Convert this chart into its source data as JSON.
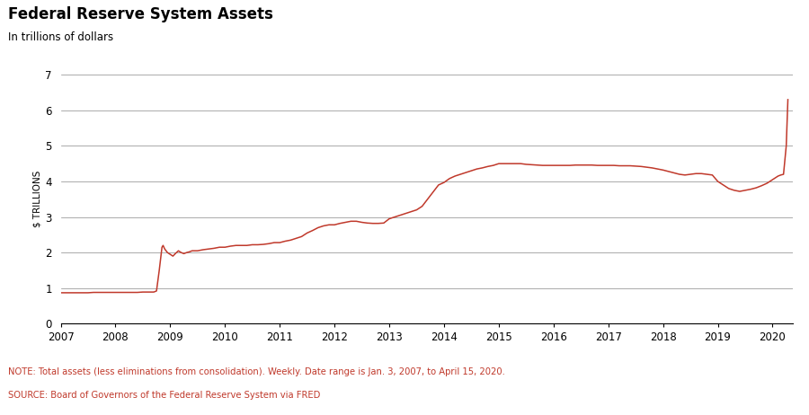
{
  "title": "Federal Reserve System Assets",
  "subtitle": "In trillions of dollars",
  "ylabel": "$ TRILLIONS",
  "note": "NOTE: Total assets (less eliminations from consolidation). Weekly. Date range is Jan. 3, 2007, to April 15, 2020.",
  "source": "SOURCE: Board of Governors of the Federal Reserve System via FRED",
  "line_color": "#c0392b",
  "background_color": "#ffffff",
  "note_color": "#c0392b",
  "grid_color": "#888888",
  "ylim": [
    0,
    7
  ],
  "yticks": [
    0,
    1,
    2,
    3,
    4,
    5,
    6,
    7
  ],
  "xlim_start": 2007.0,
  "xlim_end": 2020.37,
  "xtick_years": [
    2007,
    2008,
    2009,
    2010,
    2011,
    2012,
    2013,
    2014,
    2015,
    2016,
    2017,
    2018,
    2019,
    2020
  ],
  "data_x": [
    2007.0,
    2007.1,
    2007.2,
    2007.3,
    2007.4,
    2007.5,
    2007.6,
    2007.7,
    2007.8,
    2007.9,
    2008.0,
    2008.1,
    2008.2,
    2008.3,
    2008.4,
    2008.5,
    2008.6,
    2008.7,
    2008.75,
    2008.8,
    2008.83,
    2008.85,
    2008.87,
    2008.9,
    2008.95,
    2009.0,
    2009.05,
    2009.1,
    2009.15,
    2009.2,
    2009.25,
    2009.3,
    2009.35,
    2009.4,
    2009.5,
    2009.6,
    2009.7,
    2009.8,
    2009.9,
    2010.0,
    2010.1,
    2010.2,
    2010.3,
    2010.4,
    2010.5,
    2010.6,
    2010.7,
    2010.8,
    2010.9,
    2011.0,
    2011.1,
    2011.2,
    2011.3,
    2011.4,
    2011.5,
    2011.6,
    2011.7,
    2011.8,
    2011.9,
    2012.0,
    2012.1,
    2012.2,
    2012.3,
    2012.4,
    2012.5,
    2012.6,
    2012.7,
    2012.8,
    2012.9,
    2013.0,
    2013.1,
    2013.2,
    2013.3,
    2013.4,
    2013.5,
    2013.6,
    2013.7,
    2013.8,
    2013.9,
    2014.0,
    2014.1,
    2014.2,
    2014.3,
    2014.4,
    2014.5,
    2014.6,
    2014.7,
    2014.8,
    2014.9,
    2015.0,
    2015.1,
    2015.2,
    2015.3,
    2015.4,
    2015.5,
    2015.6,
    2015.7,
    2015.8,
    2015.9,
    2016.0,
    2016.1,
    2016.2,
    2016.3,
    2016.4,
    2016.5,
    2016.6,
    2016.7,
    2016.8,
    2016.9,
    2017.0,
    2017.1,
    2017.2,
    2017.3,
    2017.4,
    2017.5,
    2017.6,
    2017.7,
    2017.8,
    2017.9,
    2018.0,
    2018.1,
    2018.2,
    2018.3,
    2018.4,
    2018.5,
    2018.6,
    2018.7,
    2018.8,
    2018.9,
    2019.0,
    2019.1,
    2019.2,
    2019.3,
    2019.4,
    2019.5,
    2019.6,
    2019.7,
    2019.8,
    2019.9,
    2020.0,
    2020.05,
    2020.1,
    2020.15,
    2020.2,
    2020.25,
    2020.28
  ],
  "data_y": [
    0.87,
    0.87,
    0.87,
    0.87,
    0.87,
    0.87,
    0.88,
    0.88,
    0.88,
    0.88,
    0.88,
    0.88,
    0.88,
    0.88,
    0.88,
    0.89,
    0.89,
    0.89,
    0.92,
    1.5,
    1.9,
    2.15,
    2.2,
    2.1,
    2.0,
    1.95,
    1.9,
    1.98,
    2.05,
    2.0,
    1.97,
    2.0,
    2.02,
    2.05,
    2.05,
    2.08,
    2.1,
    2.12,
    2.15,
    2.15,
    2.18,
    2.2,
    2.2,
    2.2,
    2.22,
    2.22,
    2.23,
    2.25,
    2.28,
    2.28,
    2.32,
    2.35,
    2.4,
    2.45,
    2.55,
    2.62,
    2.7,
    2.75,
    2.78,
    2.78,
    2.82,
    2.85,
    2.88,
    2.88,
    2.85,
    2.83,
    2.82,
    2.82,
    2.83,
    2.95,
    3.0,
    3.05,
    3.1,
    3.15,
    3.2,
    3.3,
    3.5,
    3.7,
    3.9,
    3.97,
    4.08,
    4.15,
    4.2,
    4.25,
    4.3,
    4.35,
    4.38,
    4.42,
    4.45,
    4.5,
    4.5,
    4.5,
    4.5,
    4.5,
    4.48,
    4.47,
    4.46,
    4.45,
    4.45,
    4.45,
    4.45,
    4.45,
    4.45,
    4.46,
    4.46,
    4.46,
    4.46,
    4.45,
    4.45,
    4.45,
    4.45,
    4.44,
    4.44,
    4.44,
    4.43,
    4.42,
    4.4,
    4.38,
    4.35,
    4.32,
    4.28,
    4.24,
    4.2,
    4.18,
    4.2,
    4.22,
    4.22,
    4.2,
    4.18,
    4.0,
    3.9,
    3.8,
    3.75,
    3.72,
    3.75,
    3.78,
    3.82,
    3.88,
    3.95,
    4.05,
    4.1,
    4.15,
    4.18,
    4.2,
    5.0,
    6.3
  ]
}
